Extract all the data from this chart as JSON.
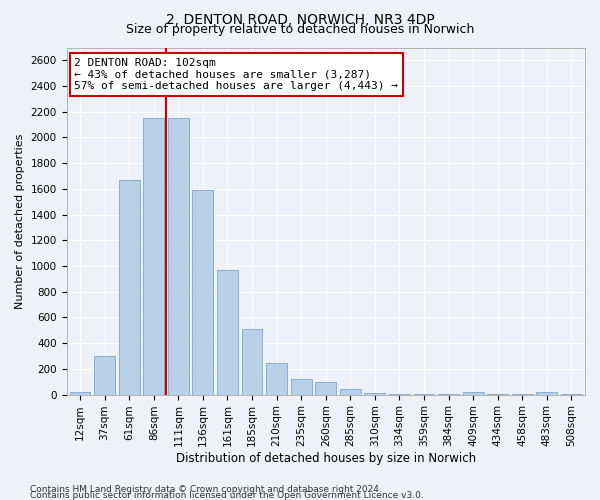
{
  "title1": "2, DENTON ROAD, NORWICH, NR3 4DP",
  "title2": "Size of property relative to detached houses in Norwich",
  "xlabel": "Distribution of detached houses by size in Norwich",
  "ylabel": "Number of detached properties",
  "categories": [
    "12sqm",
    "37sqm",
    "61sqm",
    "86sqm",
    "111sqm",
    "136sqm",
    "161sqm",
    "185sqm",
    "210sqm",
    "235sqm",
    "260sqm",
    "285sqm",
    "310sqm",
    "334sqm",
    "359sqm",
    "384sqm",
    "409sqm",
    "434sqm",
    "458sqm",
    "483sqm",
    "508sqm"
  ],
  "values": [
    20,
    300,
    1670,
    2150,
    2150,
    1590,
    970,
    510,
    245,
    120,
    95,
    40,
    12,
    8,
    5,
    3,
    20,
    3,
    2,
    20,
    2
  ],
  "bar_color": "#b8d0e8",
  "bar_edge_color": "#7aaad0",
  "vline_x_index": 3.5,
  "vline_color": "#cc0000",
  "annotation_line1": "2 DENTON ROAD: 102sqm",
  "annotation_line2": "← 43% of detached houses are smaller (3,287)",
  "annotation_line3": "57% of semi-detached houses are larger (4,443) →",
  "ylim": [
    0,
    2700
  ],
  "yticks": [
    0,
    200,
    400,
    600,
    800,
    1000,
    1200,
    1400,
    1600,
    1800,
    2000,
    2200,
    2400,
    2600
  ],
  "footer1": "Contains HM Land Registry data © Crown copyright and database right 2024.",
  "footer2": "Contains public sector information licensed under the Open Government Licence v3.0.",
  "background_color": "#eef2f8",
  "grid_color": "#ffffff",
  "title1_fontsize": 10,
  "title2_fontsize": 9,
  "xlabel_fontsize": 8.5,
  "ylabel_fontsize": 8,
  "tick_fontsize": 7.5,
  "annotation_fontsize": 8,
  "footer_fontsize": 6.5
}
